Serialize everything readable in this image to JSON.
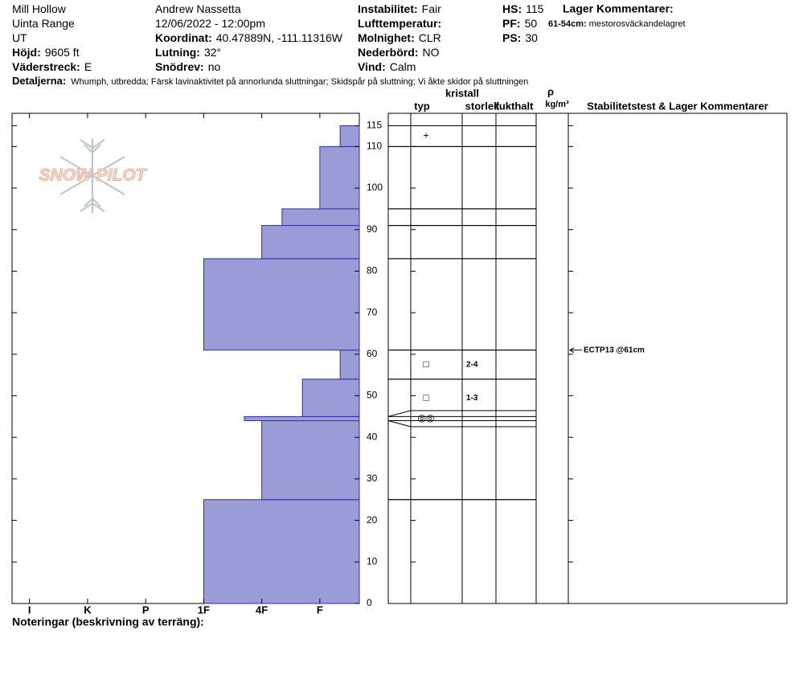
{
  "header": {
    "columns": [
      [
        {
          "value": "Mill Hollow"
        },
        {
          "value": "Uinta Range"
        },
        {
          "value": "UT"
        },
        {
          "label": "Höjd:",
          "value": "9605 ft"
        },
        {
          "label": "Väderstreck:",
          "value": "E"
        }
      ],
      [
        {
          "value": "Andrew Nassetta"
        },
        {
          "value": "12/06/2022 - 12:00pm"
        },
        {
          "label": "Koordinat:",
          "value": "40.47889N, -111.11316W"
        },
        {
          "label": "Lutning:",
          "value": "32°"
        },
        {
          "label": "Snödrev:",
          "value": "no"
        }
      ],
      [
        {
          "label": "Instabilitet:",
          "value": "Fair"
        },
        {
          "label": "Lufttemperatur:"
        },
        {
          "label": "Molnighet:",
          "value": "CLR"
        },
        {
          "label": "Nederbörd:",
          "value": "NO"
        },
        {
          "label": "Vind:",
          "value": "Calm"
        }
      ],
      [
        {
          "label": "HS:",
          "value": "115"
        },
        {
          "label": "PF:",
          "value": "50"
        },
        {
          "label": "PS:",
          "value": "30"
        }
      ]
    ],
    "layer_comments": {
      "title": "Lager Kommentarer:",
      "items": [
        {
          "label": "61-54cm:",
          "value": "mestorosväckandelagret"
        }
      ]
    },
    "details": {
      "label": "Detaljerna:",
      "value": "Whumph, utbredda; Färsk lavinaktivitet på annorlunda sluttningar; Skidspår på sluttning; Vi åkte skidor på sluttningen"
    },
    "notes": "Noteringar (beskrivning av terräng):"
  },
  "chart_data": {
    "type": "snow-profile",
    "logo": "SNOW PILOT",
    "ylim": [
      0,
      118
    ],
    "yticks": [
      0,
      10,
      20,
      30,
      40,
      50,
      60,
      70,
      80,
      90,
      100,
      110,
      115
    ],
    "xlim": [
      6.3,
      0.32
    ],
    "xticks": [
      {
        "value": 6,
        "label": "I"
      },
      {
        "value": 5,
        "label": "K"
      },
      {
        "value": 4,
        "label": "P"
      },
      {
        "value": 3,
        "label": "1F"
      },
      {
        "value": 2,
        "label": "4F"
      },
      {
        "value": 1,
        "label": "F"
      }
    ],
    "color": "#9b9bd8",
    "edgecolor": "#2c2ca8",
    "column_headers": [
      "typ",
      "kristall",
      "storlek",
      "fukthalt",
      "ρ",
      "kg/m³",
      "Stabilitetstest & Lager Kommentarer"
    ],
    "layers": [
      {
        "bottom": 0,
        "top": 25,
        "hardness": 3
      },
      {
        "bottom": 25,
        "top": 44,
        "hardness": 2
      },
      {
        "bottom": 44,
        "top": 45,
        "hardness": 2.3,
        "grain": "◎◎"
      },
      {
        "bottom": 45,
        "top": 54,
        "hardness": 1.3,
        "grain": "□",
        "size": "1-3"
      },
      {
        "bottom": 54,
        "top": 61,
        "hardness": 0.65,
        "grain": "□",
        "size": "2-4"
      },
      {
        "bottom": 61,
        "top": 83,
        "hardness": 3
      },
      {
        "bottom": 83,
        "top": 91,
        "hardness": 2
      },
      {
        "bottom": 91,
        "top": 95,
        "hardness": 1.65
      },
      {
        "bottom": 95,
        "top": 110,
        "hardness": 1
      },
      {
        "bottom": 110,
        "top": 115,
        "hardness": 0.65,
        "grain": "+"
      }
    ],
    "tests": [
      {
        "label": "ECTP13 @61cm",
        "depth": 61
      }
    ]
  }
}
